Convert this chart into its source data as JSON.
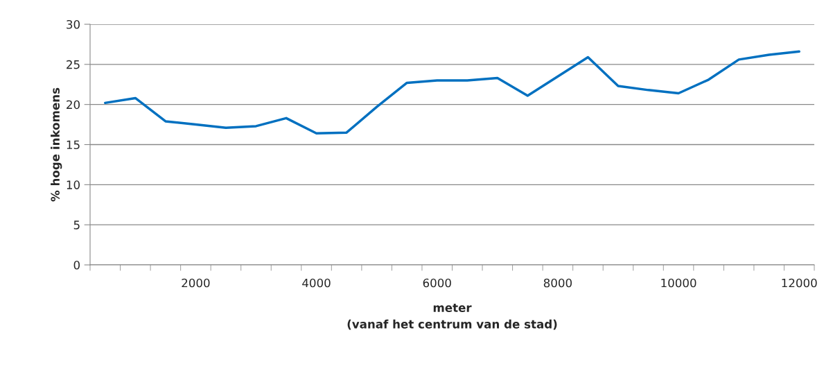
{
  "chart_data": {
    "type": "line",
    "xlabel": "meter\n(vanaf het centrum van de stad)",
    "ylabel": "% hoge inkomens",
    "categories": [
      null,
      null,
      null,
      "2000",
      null,
      null,
      null,
      "4000",
      null,
      null,
      null,
      "6000",
      null,
      null,
      null,
      "8000",
      null,
      null,
      null,
      "10000",
      null,
      null,
      null,
      "12000"
    ],
    "series": [
      {
        "color": "#0070c0",
        "values": [
          20.2,
          20.8,
          17.9,
          17.5,
          17.1,
          17.3,
          18.3,
          16.4,
          16.5,
          19.7,
          22.7,
          23.0,
          23.0,
          23.3,
          21.1,
          23.5,
          25.9,
          22.3,
          21.8,
          21.4,
          23.1,
          25.6,
          26.2,
          26.6
        ]
      }
    ],
    "ylim": [
      0,
      30
    ],
    "yticks": [
      0,
      5,
      10,
      15,
      20,
      25,
      30
    ],
    "grid": "y",
    "marker": "none",
    "line_style": "solid"
  }
}
